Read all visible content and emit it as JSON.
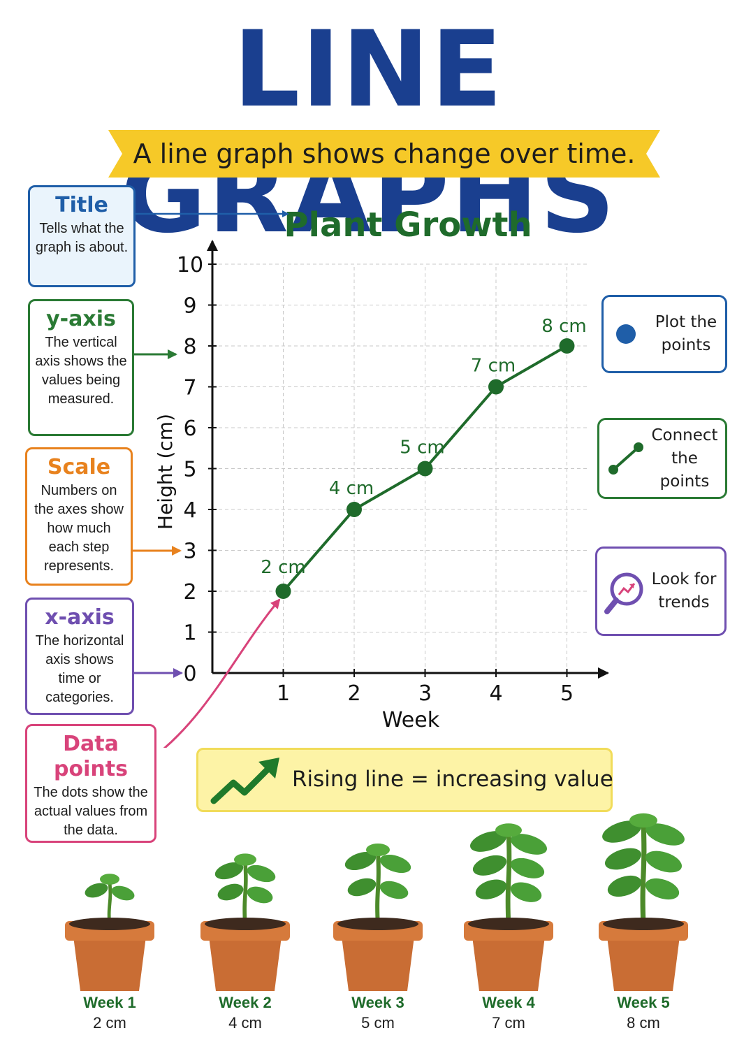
{
  "poster": {
    "title": "LINE GRAPHS",
    "subtitle": "A line graph shows change over time.",
    "colors": {
      "title": "#1a3f8f",
      "banner": "#f6c928",
      "line": "#1f6b2b",
      "accent_green": "#2a7a34"
    }
  },
  "callouts": [
    {
      "title": "Title",
      "desc": "Tells what the graph is about.",
      "color": "#1f5ea8",
      "bg": "#eaf4fc"
    },
    {
      "title": "y-axis",
      "desc": "The vertical axis shows the values being measured.",
      "color": "#2a7a34",
      "bg": "#ffffff"
    },
    {
      "title": "Scale",
      "desc": "Numbers on the axes show how much each step represents.",
      "color": "#e8821e",
      "bg": "#ffffff"
    },
    {
      "title": "x-axis",
      "desc": "The horizontal axis shows time or categories.",
      "color": "#6f4fb0",
      "bg": "#ffffff"
    },
    {
      "title": "Data points",
      "desc": "The dots show the actual values from the data.",
      "color": "#d8437a",
      "bg": "#ffffff"
    }
  ],
  "tips": [
    {
      "text": "Plot the points",
      "icon": "blue-dot-icon",
      "color": "#1f5ea8"
    },
    {
      "text": "Connect the points",
      "icon": "connected-dots-icon",
      "color": "#2a7a34"
    },
    {
      "text": "Look for trends",
      "icon": "magnifier-trend-icon",
      "color": "#6f4fb0"
    }
  ],
  "trend": {
    "text": "Rising line = increasing value",
    "icon": "rising-arrow-icon"
  },
  "chart_data": {
    "type": "line",
    "title": "Plant Growth",
    "xlabel": "Week",
    "ylabel": "Height (cm)",
    "x": [
      1,
      2,
      3,
      4,
      5
    ],
    "y": [
      2,
      4,
      5,
      7,
      8
    ],
    "data_labels": [
      "2 cm",
      "4 cm",
      "5 cm",
      "7 cm",
      "8 cm"
    ],
    "x_ticks": [
      "1",
      "2",
      "3",
      "4",
      "5"
    ],
    "y_ticks": [
      "0",
      "1",
      "2",
      "3",
      "4",
      "5",
      "6",
      "7",
      "8",
      "9",
      "10"
    ],
    "xlim": [
      0,
      5
    ],
    "ylim": [
      0,
      10
    ],
    "grid": true,
    "line_color": "#1f6b2b"
  },
  "plants": [
    {
      "week": "Week 1",
      "height": "2 cm",
      "value": 2
    },
    {
      "week": "Week 2",
      "height": "4 cm",
      "value": 4
    },
    {
      "week": "Week 3",
      "height": "5 cm",
      "value": 5
    },
    {
      "week": "Week 4",
      "height": "7 cm",
      "value": 7
    },
    {
      "week": "Week 5",
      "height": "8 cm",
      "value": 8
    }
  ]
}
